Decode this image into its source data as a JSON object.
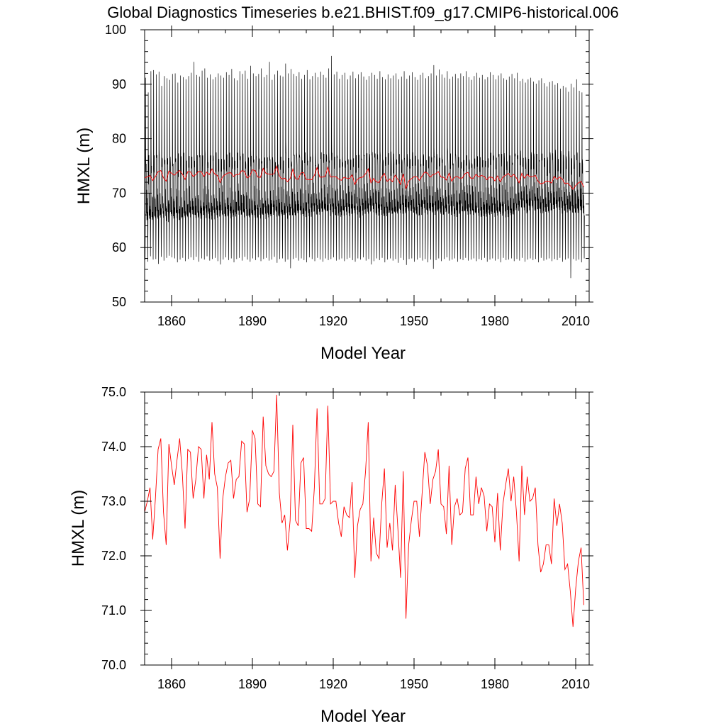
{
  "page_title": "Global Diagnostics Timeseries b.e21.BHIST.f09_g17.CMIP6-historical.006",
  "colors": {
    "monthly": "#000000",
    "annual": "#ff0000",
    "axis": "#000000"
  },
  "chart_data": [
    {
      "type": "line",
      "title": "",
      "xlabel": "Model Year",
      "ylabel": "HMXL (m)",
      "xlim": [
        1850,
        2015
      ],
      "ylim": [
        50,
        100
      ],
      "x_ticks": [
        1860,
        1890,
        1920,
        1950,
        1980,
        2010
      ],
      "x_tick_labels": [
        "1860",
        "1890",
        "1920",
        "1950",
        "1980",
        "2010"
      ],
      "y_ticks": [
        50,
        60,
        70,
        80,
        90,
        100
      ],
      "y_tick_labels": [
        "50",
        "60",
        "70",
        "80",
        "90",
        "100"
      ],
      "grid": false,
      "series": [
        {
          "style": "monthly",
          "color": "#000000",
          "x_start": 1850,
          "x_step": 1,
          "annual_min": [
            57.8,
            57.4,
            58.4,
            57.8,
            57.9,
            57.0,
            58.3,
            57.6,
            58.1,
            58.5,
            58.2,
            58.0,
            57.3,
            57.8,
            58.1,
            57.5,
            57.9,
            58.2,
            57.7,
            58.3,
            57.4,
            58.0,
            57.8,
            58.4,
            57.6,
            57.9,
            58.1,
            57.5,
            56.9,
            57.8,
            58.2,
            57.7,
            58.0,
            57.3,
            57.9,
            58.1,
            57.6,
            58.3,
            57.8,
            57.4,
            58.0,
            57.7,
            58.2,
            57.5,
            57.9,
            58.1,
            57.6,
            57.8,
            58.3,
            57.2,
            57.9,
            58.0,
            57.4,
            57.8,
            56.2,
            57.9,
            58.1,
            57.6,
            58.0,
            57.7,
            57.3,
            58.2,
            57.9,
            57.5,
            58.1,
            57.8,
            57.4,
            58.0,
            57.7,
            57.9,
            58.2,
            57.6,
            57.8,
            58.0,
            57.5,
            57.9,
            58.1,
            57.7,
            57.4,
            58.0,
            57.8,
            58.2,
            57.6,
            57.9,
            56.9,
            57.5,
            58.0,
            57.7,
            58.1,
            57.3,
            57.8,
            58.0,
            57.6,
            57.9,
            57.2,
            58.1,
            57.7,
            56.8,
            57.9,
            58.0,
            57.4,
            57.8,
            58.1,
            57.6,
            57.9,
            57.3,
            57.8,
            56.1,
            57.7,
            58.0,
            57.5,
            57.9,
            58.2,
            57.6,
            57.8,
            58.0,
            57.4,
            57.9,
            57.7,
            58.1,
            57.6,
            57.8,
            58.0,
            57.5,
            57.9,
            57.7,
            58.1,
            57.4,
            57.8,
            58.0,
            57.6,
            57.9,
            57.3,
            58.1,
            57.7,
            57.8,
            58.0,
            57.5,
            57.9,
            57.6,
            58.1,
            57.4,
            57.8,
            58.0,
            57.7,
            57.9,
            57.3,
            58.1,
            57.6,
            57.8,
            58.0,
            57.5,
            57.9,
            57.7,
            58.1,
            57.4,
            57.8,
            58.0,
            54.4,
            57.9,
            57.6,
            57.8,
            57.3,
            58.0
          ],
          "annual_max": [
            91.2,
            88.5,
            92.4,
            92.6,
            91.8,
            92.3,
            89.7,
            91.5,
            91.1,
            90.8,
            91.9,
            92.0,
            90.3,
            91.6,
            91.3,
            90.9,
            91.5,
            92.1,
            94.1,
            91.7,
            91.4,
            92.5,
            92.9,
            91.2,
            91.8,
            90.9,
            91.3,
            92.0,
            91.6,
            91.2,
            92.2,
            91.7,
            92.8,
            91.1,
            90.7,
            92.4,
            91.9,
            92.5,
            91.0,
            93.4,
            92.0,
            91.5,
            91.9,
            92.9,
            91.3,
            91.7,
            94.1,
            90.8,
            91.8,
            92.5,
            91.6,
            91.4,
            93.8,
            92.0,
            92.8,
            91.9,
            91.5,
            92.2,
            91.0,
            91.7,
            92.6,
            90.9,
            91.5,
            92.1,
            91.3,
            92.3,
            91.7,
            91.2,
            92.9,
            95.2,
            91.8,
            92.3,
            91.0,
            91.7,
            92.1,
            90.9,
            91.6,
            92.3,
            91.1,
            91.8,
            92.2,
            91.4,
            90.8,
            91.5,
            92.1,
            91.7,
            91.0,
            92.4,
            91.3,
            90.9,
            91.8,
            91.1,
            91.6,
            92.0,
            90.9,
            91.4,
            92.4,
            91.0,
            91.6,
            92.2,
            91.3,
            90.8,
            91.7,
            92.1,
            91.1,
            91.5,
            92.0,
            93.5,
            91.6,
            92.7,
            91.8,
            91.2,
            92.4,
            91.0,
            91.4,
            91.9,
            91.1,
            92.0,
            91.5,
            92.4,
            91.3,
            90.8,
            91.5,
            92.1,
            91.2,
            91.7,
            90.9,
            91.3,
            92.2,
            91.7,
            90.9,
            91.6,
            92.0,
            91.1,
            90.8,
            91.4,
            91.9,
            91.1,
            92.1,
            90.6,
            91.0,
            90.3,
            90.9,
            91.2,
            90.5,
            90.1,
            90.7,
            91.1,
            90.2,
            89.6,
            90.4,
            90.6,
            89.9,
            90.2,
            89.2,
            89.7,
            89.4,
            88.6,
            90.1,
            89.4,
            90.9,
            88.8,
            88.5
          ],
          "lower_envelope": [
            64.2,
            64.6,
            64.9,
            65.1,
            64.8,
            65.5
          ]
        },
        {
          "style": "annual mean",
          "color": "#ff0000",
          "x_start": 1850,
          "x_step": 1,
          "values": [
            72.8,
            73.0,
            73.25,
            72.3,
            73.05,
            73.95,
            74.15,
            72.8,
            72.2,
            74.05,
            73.65,
            73.3,
            73.75,
            74.15,
            73.5,
            72.5,
            73.95,
            73.9,
            73.05,
            73.4,
            74.0,
            73.95,
            73.05,
            73.85,
            73.4,
            74.45,
            73.5,
            73.25,
            71.95,
            73.05,
            73.45,
            73.7,
            73.75,
            73.05,
            73.4,
            73.45,
            74.1,
            74.05,
            72.8,
            73.05,
            74.3,
            74.15,
            72.95,
            72.9,
            74.55,
            73.65,
            73.5,
            73.45,
            73.55,
            74.95,
            73.15,
            72.6,
            72.75,
            72.1,
            72.65,
            74.4,
            72.65,
            72.55,
            73.7,
            73.8,
            72.5,
            72.5,
            72.45,
            73.25,
            74.7,
            72.95,
            72.95,
            73.05,
            74.75,
            72.95,
            73.0,
            73.0,
            72.6,
            72.35,
            72.9,
            72.75,
            72.7,
            73.35,
            71.6,
            72.55,
            72.85,
            72.95,
            73.55,
            74.45,
            71.9,
            72.7,
            72.05,
            71.95,
            72.95,
            73.6,
            72.15,
            72.6,
            72.1,
            73.3,
            72.5,
            71.6,
            73.55,
            70.85,
            72.2,
            72.65,
            73.0,
            73.0,
            72.35,
            73.15,
            73.9,
            73.65,
            72.95,
            73.4,
            73.55,
            73.95,
            72.95,
            72.9,
            72.4,
            73.65,
            72.2,
            72.9,
            73.05,
            72.75,
            72.8,
            73.6,
            73.8,
            72.75,
            72.75,
            73.45,
            72.95,
            73.25,
            73.1,
            72.45,
            72.95,
            72.9,
            72.25,
            73.15,
            72.1,
            72.95,
            73.3,
            73.6,
            73.0,
            73.45,
            72.8,
            71.9,
            73.65,
            72.75,
            73.45,
            73.0,
            73.05,
            73.25,
            72.2,
            71.7,
            71.85,
            72.2,
            72.2,
            71.85,
            73.05,
            72.55,
            72.95,
            72.6,
            71.75,
            71.85,
            71.35,
            70.7,
            71.4,
            71.9,
            72.15,
            71.1
          ]
        }
      ]
    },
    {
      "type": "line",
      "title": "",
      "xlabel": "Model Year",
      "ylabel": "HMXL (m)",
      "xlim": [
        1850,
        2015
      ],
      "ylim": [
        70.0,
        75.0
      ],
      "x_ticks": [
        1860,
        1890,
        1920,
        1950,
        1980,
        2010
      ],
      "x_tick_labels": [
        "1860",
        "1890",
        "1920",
        "1950",
        "1980",
        "2010"
      ],
      "y_ticks": [
        70.0,
        71.0,
        72.0,
        73.0,
        74.0,
        75.0
      ],
      "y_tick_labels": [
        "70.0",
        "71.0",
        "72.0",
        "73.0",
        "74.0",
        "75.0"
      ],
      "grid": false,
      "series": [
        {
          "style": "annual mean",
          "color": "#ff0000",
          "x_start": 1850,
          "x_step": 1,
          "values": [
            72.8,
            73.0,
            73.25,
            72.3,
            73.05,
            73.95,
            74.15,
            72.8,
            72.2,
            74.05,
            73.65,
            73.3,
            73.75,
            74.15,
            73.5,
            72.5,
            73.95,
            73.9,
            73.05,
            73.4,
            74.0,
            73.95,
            73.05,
            73.85,
            73.4,
            74.45,
            73.5,
            73.25,
            71.95,
            73.05,
            73.45,
            73.7,
            73.75,
            73.05,
            73.4,
            73.45,
            74.1,
            74.05,
            72.8,
            73.05,
            74.3,
            74.15,
            72.95,
            72.9,
            74.55,
            73.65,
            73.5,
            73.45,
            73.55,
            74.95,
            73.15,
            72.6,
            72.75,
            72.1,
            72.65,
            74.4,
            72.65,
            72.55,
            73.7,
            73.8,
            72.5,
            72.5,
            72.45,
            73.25,
            74.7,
            72.95,
            72.95,
            73.05,
            74.75,
            72.95,
            73.0,
            73.0,
            72.6,
            72.35,
            72.9,
            72.75,
            72.7,
            73.35,
            71.6,
            72.55,
            72.85,
            72.95,
            73.55,
            74.45,
            71.9,
            72.7,
            72.05,
            71.95,
            72.95,
            73.6,
            72.15,
            72.6,
            72.1,
            73.3,
            72.5,
            71.6,
            73.55,
            70.85,
            72.2,
            72.65,
            73.0,
            73.0,
            72.35,
            73.15,
            73.9,
            73.65,
            72.95,
            73.4,
            73.55,
            73.95,
            72.95,
            72.9,
            72.4,
            73.65,
            72.2,
            72.9,
            73.05,
            72.75,
            72.8,
            73.6,
            73.8,
            72.75,
            72.75,
            73.45,
            72.95,
            73.25,
            73.1,
            72.45,
            72.95,
            72.9,
            72.25,
            73.15,
            72.1,
            72.95,
            73.3,
            73.6,
            73.0,
            73.45,
            72.8,
            71.9,
            73.65,
            72.75,
            73.45,
            73.0,
            73.05,
            73.25,
            72.2,
            71.7,
            71.85,
            72.2,
            72.2,
            71.85,
            73.05,
            72.55,
            72.95,
            72.6,
            71.75,
            71.85,
            71.35,
            70.7,
            71.4,
            71.9,
            72.15,
            71.1
          ]
        }
      ]
    }
  ]
}
